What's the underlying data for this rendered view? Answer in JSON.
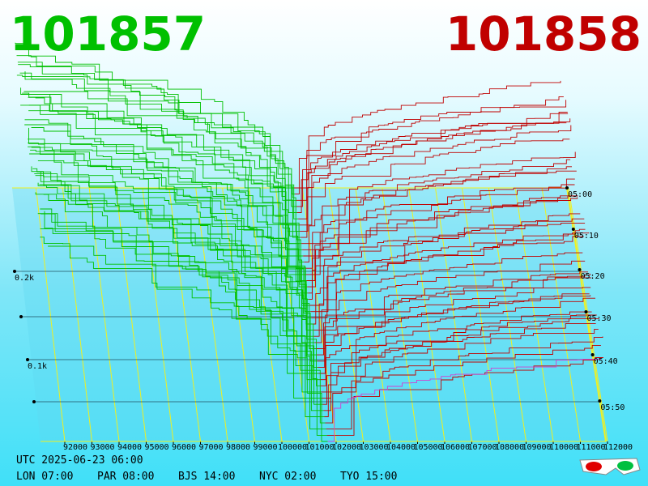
{
  "header": {
    "bid": "101857",
    "ask": "101858"
  },
  "price_axis": [
    "92000",
    "93000",
    "94000",
    "95000",
    "96000",
    "97000",
    "98000",
    "99000",
    "100000",
    "101000",
    "102000",
    "103000",
    "104000",
    "105000",
    "106000",
    "107000",
    "108000",
    "109000",
    "110000",
    "111000",
    "112000"
  ],
  "depth_axis": [
    "0.2k",
    "0.1k"
  ],
  "time_axis": [
    "05:00",
    "05:10",
    "05:20",
    "05:30",
    "05:40",
    "05:50"
  ],
  "footer": {
    "utc": "UTC 2025-06-23 06:00",
    "zones": [
      "LON 07:00",
      "PAR 08:00",
      "BJS 14:00",
      "NYC 02:00",
      "TYO 15:00"
    ]
  }
}
